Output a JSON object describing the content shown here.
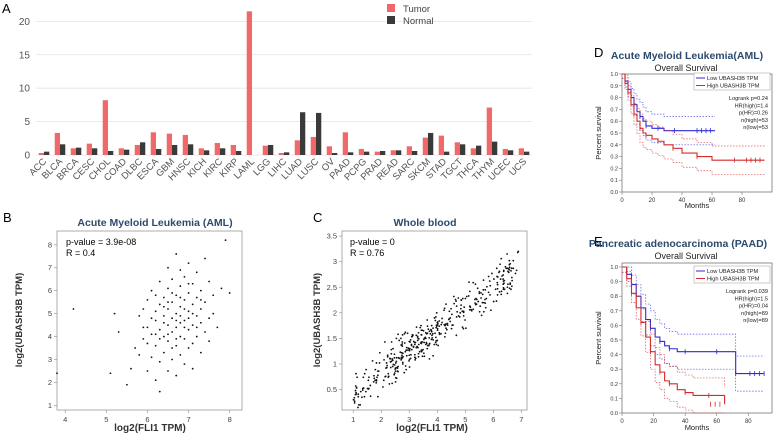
{
  "panel_labels": {
    "A": "A",
    "B": "B",
    "C": "C",
    "D": "D",
    "E": "E"
  },
  "chart_data": [
    {
      "id": "A",
      "type": "bar",
      "title": "",
      "xlabel": "",
      "ylabel": "",
      "ylim": [
        0,
        22
      ],
      "yticks": [
        0,
        5,
        10,
        15,
        20
      ],
      "legend": {
        "position": "top-right",
        "entries": [
          "Tumor",
          "Normal"
        ]
      },
      "categories": [
        "ACC",
        "BLCA",
        "BRCA",
        "CESC",
        "CHOL",
        "COAD",
        "DLBC",
        "ESCA",
        "GBM",
        "HNSC",
        "KICH",
        "KIRC",
        "KIRP",
        "LAML",
        "LGG",
        "LIHC",
        "LUAD",
        "LUSC",
        "OV",
        "PAAD",
        "PCPG",
        "PRAD",
        "READ",
        "SARC",
        "SKCM",
        "STAD",
        "TGCT",
        "THCA",
        "THYM",
        "UCEC",
        "UCS"
      ],
      "series": [
        {
          "name": "Tumor",
          "color": "#f0686a",
          "values": [
            0.3,
            3.3,
            1.0,
            1.7,
            8.2,
            1.0,
            1.5,
            3.4,
            3.2,
            3.0,
            1.0,
            1.8,
            1.5,
            21.5,
            1.4,
            0.3,
            2.2,
            2.7,
            1.3,
            3.4,
            0.9,
            0.5,
            0.7,
            1.3,
            2.6,
            2.9,
            1.9,
            1.0,
            7.1,
            0.9,
            1.0
          ]
        },
        {
          "name": "Normal",
          "color": "#3a3a3a",
          "values": [
            0.5,
            1.6,
            1.1,
            1.0,
            0.6,
            0.8,
            1.9,
            0.9,
            1.5,
            1.6,
            0.7,
            1.0,
            0.6,
            0.0,
            1.5,
            0.4,
            6.4,
            6.3,
            0.3,
            0.4,
            0.5,
            0.6,
            0.7,
            0.6,
            3.3,
            0.5,
            1.6,
            1.4,
            2.0,
            0.7,
            0.5
          ]
        }
      ]
    },
    {
      "id": "B",
      "type": "scatter",
      "title": "Acute Myeloid Leukemia (AML)",
      "xlabel": "log2(FLI1 TPM)",
      "ylabel": "log2(UBASH3B TPM)",
      "xlim": [
        3.8,
        8.3
      ],
      "ylim": [
        0.8,
        8.6
      ],
      "xticks": [
        4,
        5,
        6,
        7,
        8
      ],
      "yticks": [
        1,
        2,
        3,
        4,
        5,
        6,
        7,
        8
      ],
      "annotations": [
        "p-value = 3.9e-08",
        "R = 0.4"
      ],
      "points": [
        [
          3.8,
          2.4
        ],
        [
          4.2,
          5.2
        ],
        [
          5.2,
          5.0
        ],
        [
          5.1,
          2.4
        ],
        [
          5.3,
          4.2
        ],
        [
          5.5,
          1.9
        ],
        [
          5.6,
          2.6
        ],
        [
          5.7,
          3.5
        ],
        [
          5.8,
          3.2
        ],
        [
          5.8,
          4.9
        ],
        [
          5.9,
          3.9
        ],
        [
          5.9,
          5.2
        ],
        [
          6.0,
          2.5
        ],
        [
          6.0,
          4.4
        ],
        [
          6.0,
          5.6
        ],
        [
          6.1,
          3.1
        ],
        [
          6.1,
          4.1
        ],
        [
          6.1,
          6.0
        ],
        [
          6.2,
          2.1
        ],
        [
          6.2,
          3.6
        ],
        [
          6.2,
          4.7
        ],
        [
          6.2,
          5.1
        ],
        [
          6.3,
          1.6
        ],
        [
          6.3,
          2.9
        ],
        [
          6.3,
          4.3
        ],
        [
          6.3,
          5.4
        ],
        [
          6.3,
          6.4
        ],
        [
          6.4,
          3.3
        ],
        [
          6.4,
          4.0
        ],
        [
          6.4,
          4.9
        ],
        [
          6.4,
          5.7
        ],
        [
          6.5,
          2.5
        ],
        [
          6.5,
          3.8
        ],
        [
          6.5,
          4.5
        ],
        [
          6.5,
          5.2
        ],
        [
          6.5,
          6.1
        ],
        [
          6.5,
          7.0
        ],
        [
          6.6,
          3.0
        ],
        [
          6.6,
          4.2
        ],
        [
          6.6,
          4.8
        ],
        [
          6.6,
          5.5
        ],
        [
          6.6,
          6.5
        ],
        [
          6.7,
          2.3
        ],
        [
          6.7,
          3.6
        ],
        [
          6.7,
          4.4
        ],
        [
          6.7,
          5.0
        ],
        [
          6.7,
          5.8
        ],
        [
          6.7,
          7.6
        ],
        [
          6.8,
          3.2
        ],
        [
          6.8,
          4.0
        ],
        [
          6.8,
          4.6
        ],
        [
          6.8,
          5.3
        ],
        [
          6.8,
          6.2
        ],
        [
          6.8,
          6.9
        ],
        [
          6.9,
          2.8
        ],
        [
          6.9,
          3.9
        ],
        [
          6.9,
          4.7
        ],
        [
          6.9,
          5.6
        ],
        [
          6.9,
          6.6
        ],
        [
          7.0,
          3.5
        ],
        [
          7.0,
          4.3
        ],
        [
          7.0,
          5.1
        ],
        [
          7.0,
          5.9
        ],
        [
          7.0,
          7.2
        ],
        [
          7.1,
          2.6
        ],
        [
          7.1,
          3.7
        ],
        [
          7.1,
          4.5
        ],
        [
          7.1,
          5.4
        ],
        [
          7.1,
          6.3
        ],
        [
          7.2,
          4.0
        ],
        [
          7.2,
          4.9
        ],
        [
          7.2,
          5.7
        ],
        [
          7.2,
          6.8
        ],
        [
          7.3,
          3.3
        ],
        [
          7.3,
          4.6
        ],
        [
          7.3,
          5.2
        ],
        [
          7.3,
          6.0
        ],
        [
          7.4,
          4.2
        ],
        [
          7.4,
          5.5
        ],
        [
          7.4,
          7.4
        ],
        [
          7.5,
          3.8
        ],
        [
          7.5,
          4.8
        ],
        [
          7.5,
          6.4
        ],
        [
          7.6,
          5.0
        ],
        [
          7.6,
          5.8
        ],
        [
          7.7,
          4.4
        ],
        [
          7.8,
          6.1
        ],
        [
          7.9,
          8.2
        ],
        [
          8.0,
          5.9
        ],
        [
          6.0,
          3.7
        ],
        [
          6.2,
          4.1
        ],
        [
          6.4,
          4.6
        ],
        [
          6.6,
          3.5
        ],
        [
          6.8,
          4.9
        ],
        [
          7.0,
          4.8
        ],
        [
          6.3,
          3.9
        ],
        [
          6.5,
          4.1
        ],
        [
          6.7,
          4.7
        ],
        [
          6.9,
          4.4
        ],
        [
          7.1,
          5.0
        ],
        [
          6.1,
          4.8
        ],
        [
          6.9,
          5.2
        ],
        [
          6.6,
          5.9
        ],
        [
          7.2,
          4.4
        ],
        [
          6.4,
          5.3
        ],
        [
          5.9,
          4.4
        ],
        [
          6.7,
          3.9
        ],
        [
          7.3,
          5.6
        ],
        [
          6.5,
          5.5
        ],
        [
          6.8,
          5.7
        ],
        [
          6.2,
          5.8
        ],
        [
          7.0,
          6.3
        ]
      ]
    },
    {
      "id": "C",
      "type": "scatter",
      "title": "Whole blood",
      "xlabel": "log2(FLI1 TPM)",
      "ylabel": "log2(UBASH3B TPM)",
      "xlim": [
        0.6,
        7.2
      ],
      "ylim": [
        0.1,
        3.6
      ],
      "xticks": [
        1,
        2,
        3,
        4,
        5,
        6,
        7
      ],
      "yticks": [
        0.5,
        1.0,
        1.5,
        2.0,
        2.5,
        3.0,
        3.5
      ],
      "annotations": [
        "p-value = 0",
        "R = 0.76"
      ],
      "points": []
    },
    {
      "id": "D",
      "type": "line",
      "title": "Acute Myeloid Leukemia(AML)",
      "subtitle": "Overall Survival",
      "xlabel": "Months",
      "ylabel": "Percent survival",
      "xlim": [
        0,
        100
      ],
      "ylim": [
        0,
        1.0
      ],
      "xticks": [
        0,
        20,
        40,
        60,
        80
      ],
      "yticks": [
        0.0,
        0.1,
        0.2,
        0.3,
        0.4,
        0.5,
        0.6,
        0.7,
        0.8,
        0.9,
        1.0
      ],
      "legend": {
        "position": "top-right",
        "entries": [
          "Low UBASH3B TPM",
          "High UBASH3B TPM"
        ]
      },
      "annotations": [
        "Logrank p=0.24",
        "HR(high)=1.4",
        "p(HR)=0.26",
        "n(high)=53",
        "n(low)=53"
      ],
      "series": [
        {
          "name": "Low UBASH3B TPM",
          "color": "#2b2bd6",
          "x": [
            0,
            2,
            4,
            6,
            8,
            10,
            12,
            14,
            16,
            20,
            24,
            28,
            35,
            40,
            50,
            62
          ],
          "y": [
            1.0,
            0.94,
            0.87,
            0.8,
            0.74,
            0.68,
            0.64,
            0.6,
            0.56,
            0.54,
            0.54,
            0.52,
            0.52,
            0.52,
            0.52,
            0.52
          ]
        },
        {
          "name": "High UBASH3B TPM",
          "color": "#d42a2a",
          "x": [
            0,
            2,
            4,
            6,
            8,
            10,
            12,
            14,
            16,
            20,
            24,
            28,
            34,
            40,
            50,
            60,
            75,
            95
          ],
          "y": [
            1.0,
            0.92,
            0.84,
            0.74,
            0.66,
            0.6,
            0.54,
            0.5,
            0.48,
            0.45,
            0.43,
            0.4,
            0.37,
            0.33,
            0.3,
            0.27,
            0.27,
            0.27
          ]
        }
      ]
    },
    {
      "id": "E",
      "type": "line",
      "title": "Pancreatic adenocarcinoma (PAAD)",
      "subtitle": "Overall Survival",
      "xlabel": "Months",
      "ylabel": "Percent survival",
      "xlim": [
        0,
        95
      ],
      "ylim": [
        0,
        1.0
      ],
      "xticks": [
        0,
        20,
        40,
        60,
        80
      ],
      "yticks": [
        0.0,
        0.1,
        0.2,
        0.3,
        0.4,
        0.5,
        0.6,
        0.7,
        0.8,
        0.9,
        1.0
      ],
      "legend": {
        "position": "top-right",
        "entries": [
          "Low UBASH3B TPM",
          "High UBASH3B TPM"
        ]
      },
      "annotations": [
        "Logrank p=0.039",
        "HR(high)=1.5",
        "p(HR)=0.04",
        "n(high)=89",
        "n(low)=89"
      ],
      "series": [
        {
          "name": "Low UBASH3B TPM",
          "color": "#2b2bd6",
          "x": [
            0,
            3,
            6,
            9,
            12,
            15,
            18,
            21,
            24,
            27,
            30,
            35,
            40,
            50,
            60,
            70,
            72,
            80,
            90
          ],
          "y": [
            1.0,
            0.95,
            0.88,
            0.8,
            0.72,
            0.64,
            0.58,
            0.52,
            0.49,
            0.46,
            0.44,
            0.42,
            0.42,
            0.42,
            0.42,
            0.42,
            0.27,
            0.27,
            0.27
          ]
        },
        {
          "name": "High UBASH3B TPM",
          "color": "#d42a2a",
          "x": [
            0,
            3,
            6,
            9,
            12,
            15,
            18,
            21,
            24,
            27,
            30,
            35,
            40,
            45,
            55,
            65
          ],
          "y": [
            1.0,
            0.92,
            0.82,
            0.72,
            0.62,
            0.52,
            0.42,
            0.33,
            0.28,
            0.22,
            0.2,
            0.16,
            0.14,
            0.12,
            0.12,
            0.06
          ]
        }
      ]
    }
  ]
}
